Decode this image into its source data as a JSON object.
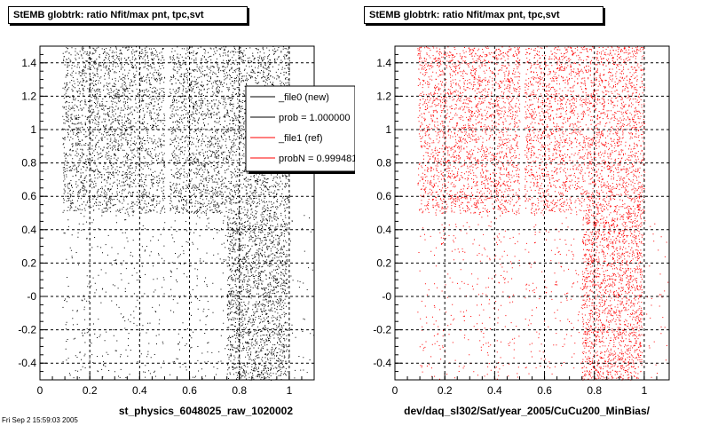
{
  "footer_text": "Fri Sep 2 15:59:03 2005",
  "chart_data": [
    {
      "type": "scatter",
      "title": "StEMB globtrk: ratio Nfit/max pnt, tpc,svt",
      "xlabel": "st_physics_6048025_raw_1020002",
      "ylabel": "",
      "xlim": [
        0,
        1.1
      ],
      "ylim": [
        -0.5,
        1.5
      ],
      "x_ticks": [
        "0",
        "0.2",
        "0.4",
        "0.6",
        "0.8",
        "1"
      ],
      "y_ticks": [
        "-0.4",
        "-0.2",
        "-0",
        "0.2",
        "0.4",
        "0.6",
        "0.8",
        "1",
        "1.2",
        "1.4"
      ],
      "grid": true,
      "color": "#000000",
      "series": [
        {
          "name": "_file0 (new)",
          "color": "#000000",
          "regions": [
            {
              "x": [
                0.09,
                1.0
              ],
              "y": [
                0.5,
                1.5
              ],
              "density": "high"
            },
            {
              "x": [
                0.09,
                1.0
              ],
              "y": [
                -0.5,
                0.5
              ],
              "density": "low"
            },
            {
              "x": [
                0.75,
                0.99
              ],
              "y": [
                -0.5,
                0.5
              ],
              "density": "medium"
            },
            {
              "x": [
                1.0,
                1.1
              ],
              "y": [
                -0.5,
                0.5
              ],
              "density": "sparse"
            }
          ],
          "gaps_x": [
            0.5,
            0.52
          ]
        }
      ],
      "legend": {
        "position": "top-right",
        "entries": [
          {
            "label": "_file0 (new)",
            "color": "#000000"
          },
          {
            "label": "prob = 1.000000",
            "color": "#000000"
          },
          {
            "label": "_file1 (ref)",
            "color": "#ff0000"
          },
          {
            "label": "probN = 0.999481",
            "color": "#ff0000"
          }
        ]
      }
    },
    {
      "type": "scatter",
      "title": "StEMB globtrk: ratio Nfit/max pnt, tpc,svt",
      "xlabel": "dev/daq_sl302/Sat/year_2005/CuCu200_MinBias/",
      "ylabel": "",
      "xlim": [
        0,
        1.1
      ],
      "ylim": [
        -0.5,
        1.5
      ],
      "x_ticks": [
        "0",
        "0.2",
        "0.4",
        "0.6",
        "0.8",
        "1"
      ],
      "y_ticks": [
        "-0.4",
        "-0.2",
        "-0",
        "0.2",
        "0.4",
        "0.6",
        "0.8",
        "1",
        "1.2",
        "1.4"
      ],
      "grid": true,
      "color": "#ff0000",
      "series": [
        {
          "name": "_file1 (ref)",
          "color": "#ff0000",
          "regions": [
            {
              "x": [
                0.09,
                1.0
              ],
              "y": [
                0.5,
                1.5
              ],
              "density": "high"
            },
            {
              "x": [
                0.09,
                1.0
              ],
              "y": [
                -0.5,
                0.5
              ],
              "density": "low"
            },
            {
              "x": [
                0.75,
                0.99
              ],
              "y": [
                -0.5,
                0.5
              ],
              "density": "medium"
            },
            {
              "x": [
                1.0,
                1.1
              ],
              "y": [
                -0.5,
                0.5
              ],
              "density": "sparse"
            }
          ],
          "gaps_x": [
            0.5,
            0.52
          ]
        }
      ]
    }
  ]
}
